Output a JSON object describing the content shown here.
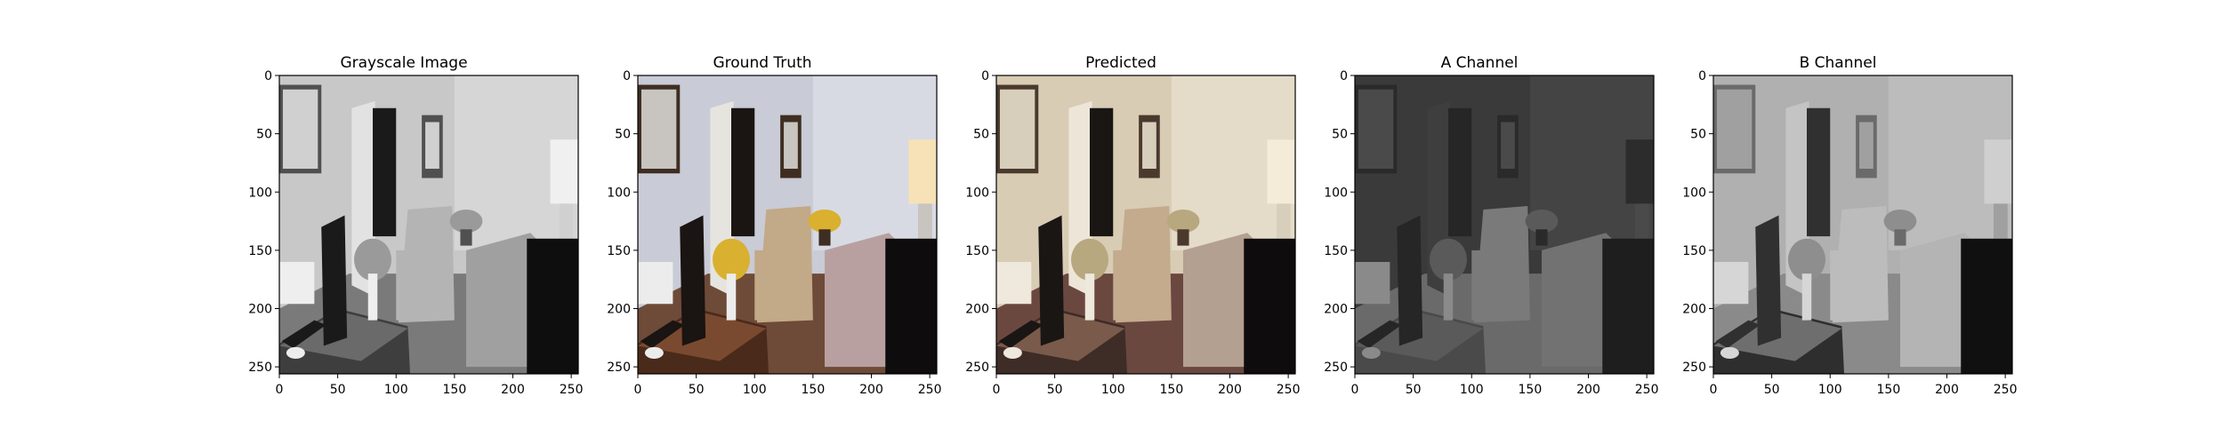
{
  "figure": {
    "panels": [
      {
        "title": "Grayscale Image",
        "image": "grayscale-living-room",
        "palette": "gray"
      },
      {
        "title": "Ground Truth",
        "image": "color-living-room-ground-truth",
        "palette": "true"
      },
      {
        "title": "Predicted",
        "image": "color-living-room-predicted",
        "palette": "pred"
      },
      {
        "title": "A Channel",
        "image": "a-channel-map",
        "palette": "a"
      },
      {
        "title": "B Channel",
        "image": "b-channel-map",
        "palette": "b"
      }
    ],
    "axes": {
      "x_ticks": [
        "0",
        "50",
        "100",
        "150",
        "200",
        "250"
      ],
      "y_ticks": [
        "0",
        "50",
        "100",
        "150",
        "200",
        "250"
      ],
      "x_range": [
        0,
        256
      ],
      "y_range": [
        0,
        256
      ]
    }
  }
}
